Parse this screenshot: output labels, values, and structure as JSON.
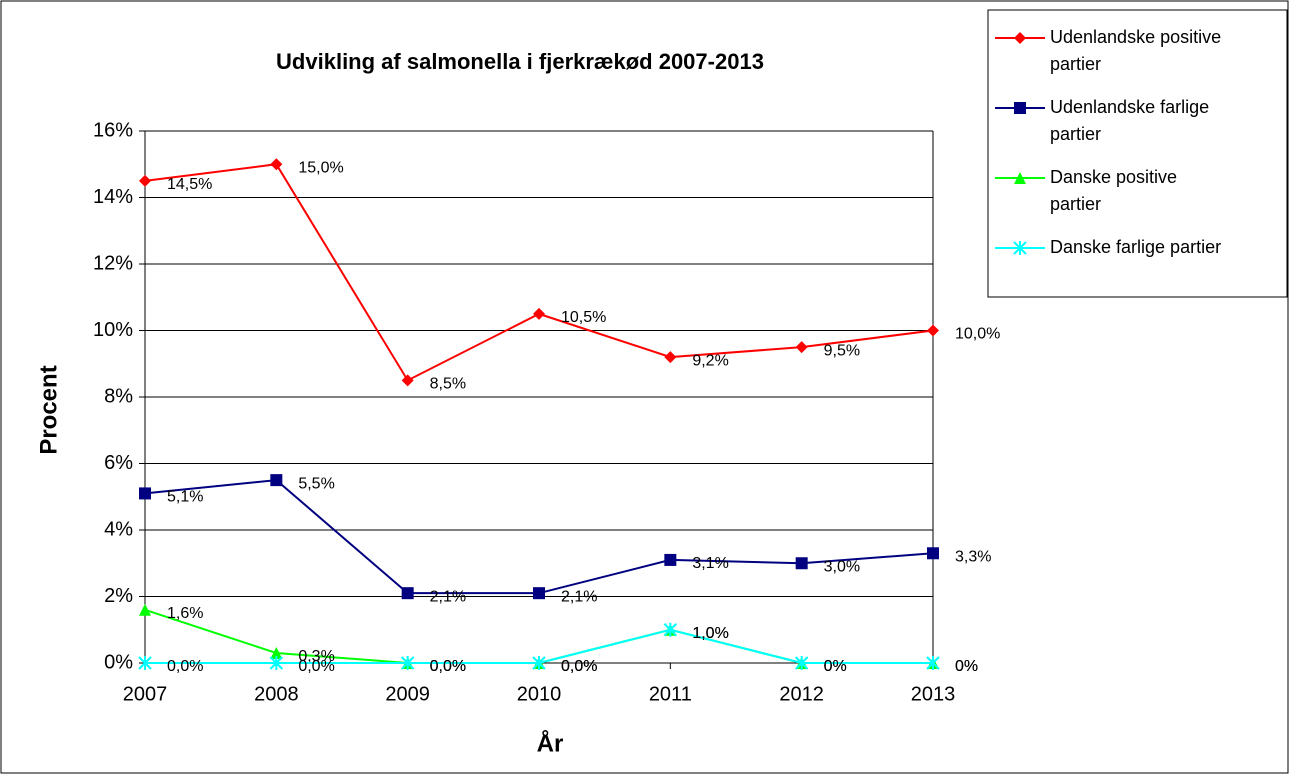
{
  "chart_data": {
    "type": "line",
    "title": "Udvikling af salmonella i fjerkrækød 2007-2013",
    "x_label": "År",
    "y_label": "Procent",
    "categories": [
      "2007",
      "2008",
      "2009",
      "2010",
      "2011",
      "2012",
      "2013"
    ],
    "ylim": [
      0,
      16
    ],
    "yticks": [
      {
        "value": 0,
        "label": "0%"
      },
      {
        "value": 2,
        "label": "2%"
      },
      {
        "value": 4,
        "label": "4%"
      },
      {
        "value": 6,
        "label": "6%"
      },
      {
        "value": 8,
        "label": "8%"
      },
      {
        "value": 10,
        "label": "10%"
      },
      {
        "value": 12,
        "label": "12%"
      },
      {
        "value": 14,
        "label": "14%"
      },
      {
        "value": 16,
        "label": "16%"
      }
    ],
    "grid": true,
    "legend": "right",
    "series": [
      {
        "name": "Udenlandske positive partier",
        "color": "#ff0000",
        "marker": "diamond",
        "values": [
          14.5,
          15.0,
          8.5,
          10.5,
          9.2,
          9.5,
          10.0
        ],
        "value_labels": [
          "14,5%",
          "15,0%",
          "8,5%",
          "10,5%",
          "9,2%",
          "9,5%",
          "10,0%"
        ]
      },
      {
        "name": "Udenlandske farlige partier",
        "color": "#000080",
        "marker": "square",
        "values": [
          5.1,
          5.5,
          2.1,
          2.1,
          3.1,
          3.0,
          3.3
        ],
        "value_labels": [
          "5,1%",
          "5,5%",
          "2,1%",
          "2,1%",
          "3,1%",
          "3,0%",
          "3,3%"
        ]
      },
      {
        "name": "Danske positive partier",
        "color": "#00ff00",
        "marker": "triangle",
        "values": [
          1.6,
          0.3,
          0.0,
          0.0,
          1.0,
          0,
          0
        ],
        "value_labels": [
          "1,6%",
          "0,3%",
          "0,0%",
          "0,0%",
          "1,0%",
          "0%",
          "0%"
        ]
      },
      {
        "name": "Danske farlige partier",
        "color": "#00ffff",
        "marker": "x",
        "values": [
          0.0,
          0.0,
          0.0,
          0.0,
          1.0,
          0,
          0
        ],
        "value_labels": [
          "0,0%",
          "0,0%",
          "0,0%",
          "0,0%",
          "1,0%",
          "0%",
          "0%"
        ]
      }
    ]
  }
}
